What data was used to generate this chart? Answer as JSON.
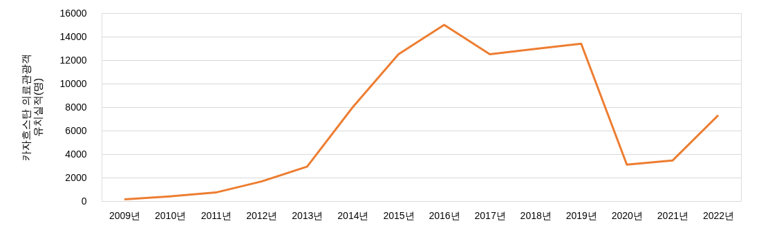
{
  "chart_data": {
    "type": "line",
    "ylabel": "카자흐스탄 의료관광객\n유치실적(명)",
    "categories": [
      "2009년",
      "2010년",
      "2011년",
      "2012년",
      "2013년",
      "2014년",
      "2015년",
      "2016년",
      "2017년",
      "2018년",
      "2019년",
      "2020년",
      "2021년",
      "2022년"
    ],
    "series": [
      {
        "color": "#ed7d31",
        "values": [
          150,
          400,
          730,
          1670,
          2930,
          8000,
          12500,
          15000,
          12500,
          12950,
          13400,
          3100,
          3450,
          7300
        ]
      }
    ],
    "ylim": [
      0,
      16000
    ],
    "yticks": [
      0,
      2000,
      4000,
      6000,
      8000,
      10000,
      12000,
      14000,
      16000
    ],
    "grid": "y",
    "marker": "none",
    "line_style": "solid",
    "legend": false
  }
}
